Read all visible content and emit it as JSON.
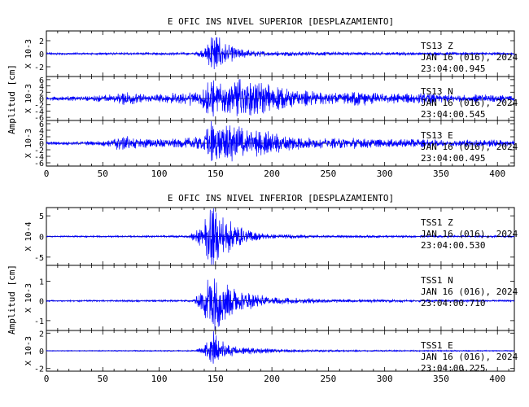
{
  "chart_data": [
    {
      "type": "line",
      "title": "E OFIC INS NIVEL SUPERIOR [DESPLAZAMIENTO]",
      "ylabel": "Amplitud [cm]",
      "xlim": [
        0,
        415
      ],
      "xticks": [
        0,
        50,
        100,
        150,
        200,
        250,
        300,
        350,
        400
      ],
      "line_color": "#0000ff",
      "traces": [
        {
          "station": "TS13",
          "component": "Z",
          "date": "JAN 16 (016), 2024",
          "time": "23:04:00.945",
          "scale_label": "X 10-3",
          "ylim": [
            -3.5,
            3.5
          ],
          "yticks": [
            -2,
            0,
            2
          ],
          "envelope": [
            [
              0,
              0.15
            ],
            [
              130,
              0.18
            ],
            [
              140,
              0.6
            ],
            [
              145,
              2.2
            ],
            [
              148,
              3.3
            ],
            [
              152,
              2.4
            ],
            [
              158,
              1.6
            ],
            [
              165,
              1.0
            ],
            [
              175,
              0.6
            ],
            [
              190,
              0.4
            ],
            [
              220,
              0.3
            ],
            [
              300,
              0.22
            ],
            [
              415,
              0.18
            ]
          ]
        },
        {
          "station": "TS13",
          "component": "N",
          "date": "JAN 16 (016), 2024",
          "time": "23:04:00.545",
          "scale_label": "X 10-3",
          "ylim": [
            -7,
            7
          ],
          "yticks": [
            -6,
            -4,
            -2,
            0,
            2,
            4,
            6
          ],
          "envelope": [
            [
              0,
              0.5
            ],
            [
              40,
              0.8
            ],
            [
              60,
              1.2
            ],
            [
              72,
              2.0
            ],
            [
              90,
              1.0
            ],
            [
              110,
              1.5
            ],
            [
              125,
              1.8
            ],
            [
              138,
              2.5
            ],
            [
              143,
              5.0
            ],
            [
              147,
              6.5
            ],
            [
              152,
              4.0
            ],
            [
              160,
              4.0
            ],
            [
              170,
              5.5
            ],
            [
              185,
              4.8
            ],
            [
              200,
              3.8
            ],
            [
              215,
              2.6
            ],
            [
              240,
              2.0
            ],
            [
              260,
              1.6
            ],
            [
              275,
              2.2
            ],
            [
              300,
              1.3
            ],
            [
              330,
              1.6
            ],
            [
              360,
              1.0
            ],
            [
              390,
              1.3
            ],
            [
              415,
              0.8
            ]
          ]
        },
        {
          "station": "TS13",
          "component": "E",
          "date": "JAN 16 (016), 2024",
          "time": "23:04:00.495",
          "scale_label": "X 10-3",
          "ylim": [
            -7,
            7
          ],
          "yticks": [
            -6,
            -4,
            -2,
            0,
            2,
            4,
            6
          ],
          "envelope": [
            [
              0,
              0.4
            ],
            [
              40,
              0.6
            ],
            [
              55,
              0.9
            ],
            [
              70,
              2.5
            ],
            [
              80,
              1.4
            ],
            [
              95,
              1.2
            ],
            [
              120,
              1.2
            ],
            [
              138,
              2.0
            ],
            [
              143,
              5.5
            ],
            [
              147,
              6.5
            ],
            [
              152,
              4.5
            ],
            [
              162,
              5.0
            ],
            [
              170,
              5.2
            ],
            [
              185,
              3.8
            ],
            [
              200,
              3.0
            ],
            [
              215,
              2.0
            ],
            [
              240,
              1.3
            ],
            [
              270,
              1.6
            ],
            [
              300,
              1.0
            ],
            [
              330,
              1.3
            ],
            [
              360,
              0.9
            ],
            [
              390,
              1.1
            ],
            [
              415,
              0.7
            ]
          ]
        }
      ]
    },
    {
      "type": "line",
      "title": "E OFIC INS NIVEL INFERIOR [DESPLAZAMIENTO]",
      "ylabel": "Amplitud [cm]",
      "xlim": [
        0,
        415
      ],
      "xticks": [
        0,
        50,
        100,
        150,
        200,
        250,
        300,
        350,
        400
      ],
      "line_color": "#0000ff",
      "traces": [
        {
          "station": "TSS1",
          "component": "Z",
          "date": "JAN 16 (016), 2024",
          "time": "23:04:00.530",
          "scale_label": "X 10-4",
          "ylim": [
            -7,
            7
          ],
          "yticks": [
            -5,
            0,
            5
          ],
          "envelope": [
            [
              0,
              0.15
            ],
            [
              125,
              0.25
            ],
            [
              133,
              1.5
            ],
            [
              140,
              4.0
            ],
            [
              146,
              7.0
            ],
            [
              152,
              5.5
            ],
            [
              158,
              4.0
            ],
            [
              166,
              3.0
            ],
            [
              175,
              1.8
            ],
            [
              185,
              0.9
            ],
            [
              200,
              0.5
            ],
            [
              250,
              0.3
            ],
            [
              415,
              0.2
            ]
          ]
        },
        {
          "station": "TSS1",
          "component": "N",
          "date": "JAN 16 (016), 2024",
          "time": "23:04:00.710",
          "scale_label": "X 10-3",
          "ylim": [
            -1.5,
            1.8
          ],
          "yticks": [
            -1,
            0,
            1
          ],
          "envelope": [
            [
              0,
              0.03
            ],
            [
              130,
              0.05
            ],
            [
              136,
              0.4
            ],
            [
              143,
              1.1
            ],
            [
              147,
              1.8
            ],
            [
              152,
              1.3
            ],
            [
              160,
              0.8
            ],
            [
              170,
              0.5
            ],
            [
              185,
              0.3
            ],
            [
              210,
              0.15
            ],
            [
              260,
              0.08
            ],
            [
              415,
              0.04
            ]
          ]
        },
        {
          "station": "TSS1",
          "component": "E",
          "date": "JAN 16 (016), 2024",
          "time": "23:04:00.225",
          "scale_label": "X 10-3",
          "ylim": [
            -2.3,
            2.3
          ],
          "yticks": [
            -2,
            0,
            2
          ],
          "envelope": [
            [
              0,
              0.04
            ],
            [
              132,
              0.06
            ],
            [
              140,
              0.5
            ],
            [
              145,
              1.6
            ],
            [
              148,
              2.3
            ],
            [
              153,
              1.2
            ],
            [
              160,
              0.8
            ],
            [
              170,
              0.5
            ],
            [
              185,
              0.3
            ],
            [
              210,
              0.15
            ],
            [
              260,
              0.08
            ],
            [
              415,
              0.05
            ]
          ]
        }
      ]
    }
  ]
}
